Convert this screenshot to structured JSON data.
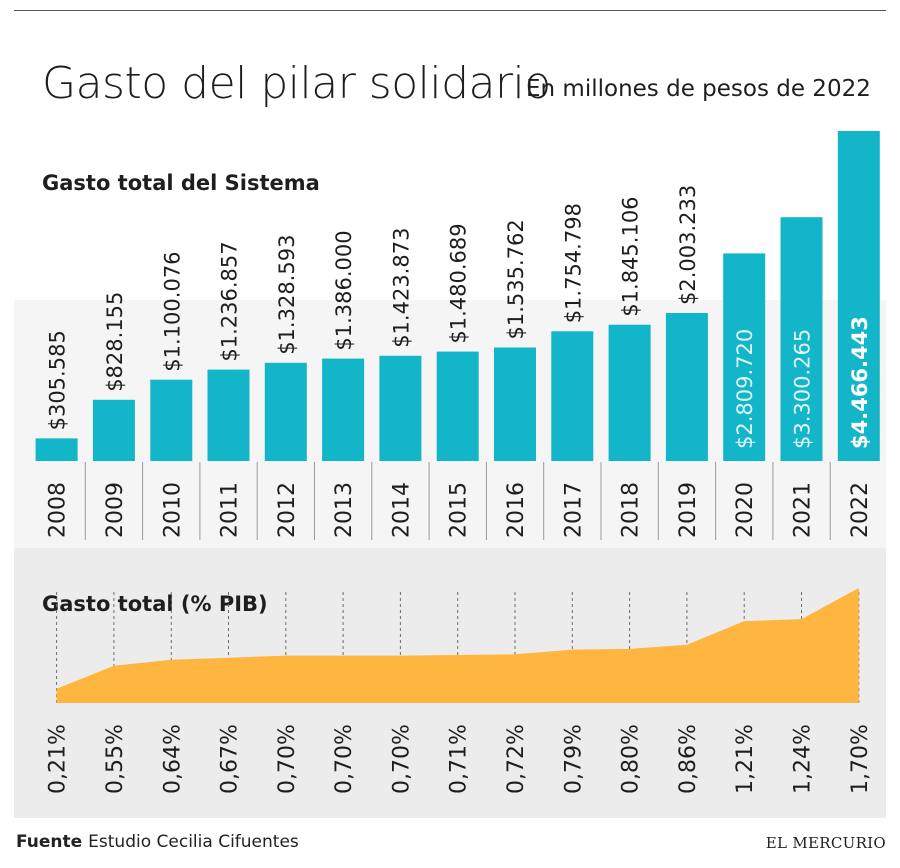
{
  "header": {
    "title": "Gasto del pilar solidario",
    "subtitle": "En millones de pesos de 2022"
  },
  "footer": {
    "source_label": "Fuente",
    "source_text": "Estudio Cecilia Cifuentes",
    "brand": "EL MERCURIO"
  },
  "colors": {
    "bar": "#13b5c9",
    "area": "#ffb640",
    "panel": "#ececec",
    "text": "#1e1e1e"
  },
  "chart_data": [
    {
      "type": "bar",
      "title": "Gasto total del Sistema",
      "unit": "En millones de pesos de 2022",
      "categories": [
        "2008",
        "2009",
        "2010",
        "2011",
        "2012",
        "2013",
        "2014",
        "2015",
        "2016",
        "2017",
        "2018",
        "2019",
        "2020",
        "2021",
        "2022"
      ],
      "values": [
        305585,
        828155,
        1100076,
        1236857,
        1328593,
        1386000,
        1423873,
        1480689,
        1535762,
        1754798,
        1845106,
        2003233,
        2809720,
        3300265,
        4466443
      ],
      "labels": [
        "$305.585",
        "$828.155",
        "$1.100.076",
        "$1.236.857",
        "$1.328.593",
        "$1.386.000",
        "$1.423.873",
        "$1.480.689",
        "$1.535.762",
        "$1.754.798",
        "$1.845.106",
        "$2.003.233",
        "$2.809.720",
        "$3.300.265",
        "$4.466.443"
      ],
      "ylim": [
        0,
        4466443
      ]
    },
    {
      "type": "area",
      "title": "Gasto total (% PIB)",
      "categories": [
        "2008",
        "2009",
        "2010",
        "2011",
        "2012",
        "2013",
        "2014",
        "2015",
        "2016",
        "2017",
        "2018",
        "2019",
        "2020",
        "2021",
        "2022"
      ],
      "values": [
        0.21,
        0.55,
        0.64,
        0.67,
        0.7,
        0.7,
        0.7,
        0.71,
        0.72,
        0.79,
        0.8,
        0.86,
        1.21,
        1.24,
        1.7
      ],
      "labels": [
        "0,21%",
        "0,55%",
        "0,64%",
        "0,67%",
        "0,70%",
        "0,70%",
        "0,70%",
        "0,71%",
        "0,72%",
        "0,79%",
        "0,80%",
        "0,86%",
        "1,21%",
        "1,24%",
        "1,70%"
      ],
      "ylim": [
        0,
        1.7
      ]
    }
  ]
}
